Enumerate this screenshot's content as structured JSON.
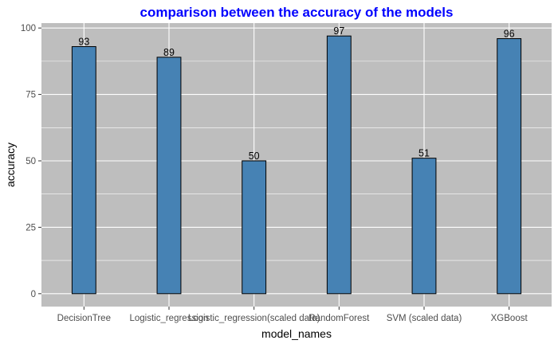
{
  "chart_data": {
    "type": "bar",
    "title": "comparison between the accuracy of the models",
    "xlabel": "model_names",
    "ylabel": "accuracy",
    "categories": [
      "DecisionTree",
      "Logistic_regression",
      "Logistic_regression(scaled data)",
      "RandomForest",
      "SVM (scaled data)",
      "XGBoost"
    ],
    "values": [
      93,
      89,
      50,
      97,
      51,
      96
    ],
    "data_labels": [
      "93",
      "89",
      "50",
      "97",
      "51",
      "96"
    ],
    "ylim": [
      -4.85,
      101.85
    ],
    "yticks": [
      0,
      25,
      50,
      75,
      100
    ],
    "grid": true,
    "colors": {
      "bar_fill": "#4682b4",
      "bar_stroke": "#000000",
      "panel_bg": "#bebebe",
      "grid": "#ffffff",
      "title": "#0000ff"
    }
  }
}
